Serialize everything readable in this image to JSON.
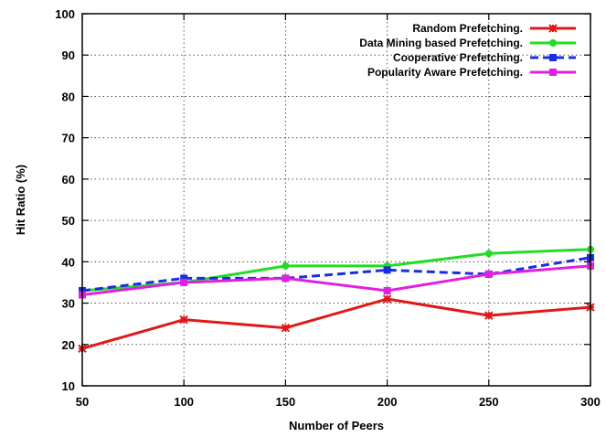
{
  "chart_data": {
    "type": "line",
    "title": "",
    "xlabel": "Number of Peers",
    "ylabel": "Hit Ratio (%)",
    "x": [
      50,
      100,
      150,
      200,
      250,
      300
    ],
    "xlim": [
      50,
      300
    ],
    "ylim": [
      10,
      100
    ],
    "xticks": [
      50,
      100,
      150,
      200,
      250,
      300
    ],
    "yticks": [
      10,
      20,
      30,
      40,
      50,
      60,
      70,
      80,
      90,
      100
    ],
    "grid": true,
    "legend_position": "top-right",
    "series": [
      {
        "name": "Random Prefetching.",
        "color": "#e01818",
        "dash": "solid",
        "marker": "star",
        "values": [
          19,
          26,
          24,
          31,
          27,
          29
        ]
      },
      {
        "name": "Data Mining based Prefetching.",
        "color": "#22dd22",
        "dash": "solid",
        "marker": "circle",
        "values": [
          33,
          35,
          39,
          39,
          42,
          43
        ]
      },
      {
        "name": "Cooperative Prefetching.",
        "color": "#1a2ee0",
        "dash": "dashed",
        "marker": "square",
        "values": [
          33,
          36,
          36,
          38,
          37,
          41
        ]
      },
      {
        "name": "Popularity Aware Prefetching.",
        "color": "#e020e0",
        "dash": "solid",
        "marker": "square",
        "values": [
          32,
          35,
          36,
          33,
          37,
          39
        ]
      }
    ]
  }
}
